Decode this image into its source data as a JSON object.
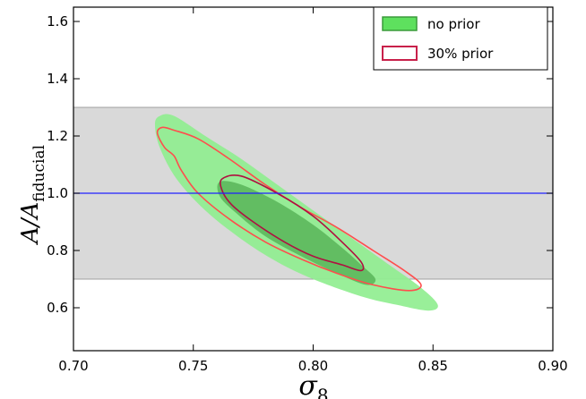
{
  "chart_data": {
    "type": "contour",
    "xlabel": "σ8",
    "ylabel": "A/Afiducial",
    "xlim": [
      0.7,
      0.9
    ],
    "ylim": [
      0.45,
      1.65
    ],
    "x_ticks": [
      0.7,
      0.75,
      0.8,
      0.85,
      0.9
    ],
    "y_ticks": [
      0.6,
      0.8,
      1.0,
      1.2,
      1.4,
      1.6
    ],
    "x_tick_labels": [
      "0.70",
      "0.75",
      "0.80",
      "0.85",
      "0.90"
    ],
    "y_tick_labels": [
      "0.6",
      "0.8",
      "1.0",
      "1.2",
      "1.4",
      "1.6"
    ],
    "grid": false,
    "legend_position": "top-right",
    "shaded_band": {
      "y_range": [
        0.7,
        1.3
      ],
      "color": "#d9d9d9"
    },
    "reference_line": {
      "y": 1.0,
      "color": "#2020ff"
    },
    "series": [
      {
        "name": "no prior",
        "style": "filled",
        "color_outer": "#90ee90",
        "color_inner": "#5cb85c",
        "edge_color": "#3a9a3a",
        "contours": [
          {
            "level": "outer",
            "points": [
              [
                0.736,
                1.27
              ],
              [
                0.742,
                1.27
              ],
              [
                0.755,
                1.2
              ],
              [
                0.77,
                1.12
              ],
              [
                0.785,
                1.03
              ],
              [
                0.8,
                0.94
              ],
              [
                0.815,
                0.85
              ],
              [
                0.83,
                0.76
              ],
              [
                0.845,
                0.67
              ],
              [
                0.852,
                0.61
              ],
              [
                0.848,
                0.59
              ],
              [
                0.835,
                0.61
              ],
              [
                0.82,
                0.64
              ],
              [
                0.8,
                0.7
              ],
              [
                0.785,
                0.76
              ],
              [
                0.77,
                0.84
              ],
              [
                0.755,
                0.94
              ],
              [
                0.743,
                1.05
              ],
              [
                0.736,
                1.16
              ],
              [
                0.734,
                1.24
              ]
            ]
          },
          {
            "level": "inner",
            "points": [
              [
                0.761,
                1.04
              ],
              [
                0.77,
                1.03
              ],
              [
                0.785,
                0.97
              ],
              [
                0.8,
                0.89
              ],
              [
                0.812,
                0.81
              ],
              [
                0.82,
                0.75
              ],
              [
                0.826,
                0.7
              ],
              [
                0.822,
                0.68
              ],
              [
                0.81,
                0.72
              ],
              [
                0.795,
                0.78
              ],
              [
                0.78,
                0.85
              ],
              [
                0.768,
                0.93
              ],
              [
                0.761,
                0.99
              ]
            ]
          }
        ]
      },
      {
        "name": "30% prior",
        "style": "line",
        "color_outer": "#ff4d4d",
        "color_inner": "#b01040",
        "contours": [
          {
            "level": "outer",
            "points": [
              [
                0.735,
                1.21
              ],
              [
                0.737,
                1.23
              ],
              [
                0.742,
                1.22
              ],
              [
                0.752,
                1.19
              ],
              [
                0.765,
                1.12
              ],
              [
                0.78,
                1.03
              ],
              [
                0.795,
                0.95
              ],
              [
                0.81,
                0.88
              ],
              [
                0.825,
                0.8
              ],
              [
                0.838,
                0.73
              ],
              [
                0.845,
                0.68
              ],
              [
                0.84,
                0.66
              ],
              [
                0.825,
                0.68
              ],
              [
                0.81,
                0.72
              ],
              [
                0.795,
                0.77
              ],
              [
                0.78,
                0.83
              ],
              [
                0.765,
                0.91
              ],
              [
                0.752,
                1.0
              ],
              [
                0.745,
                1.08
              ],
              [
                0.742,
                1.13
              ],
              [
                0.738,
                1.16
              ]
            ]
          },
          {
            "level": "inner",
            "points": [
              [
                0.762,
                1.05
              ],
              [
                0.77,
                1.06
              ],
              [
                0.785,
                1.0
              ],
              [
                0.8,
                0.92
              ],
              [
                0.812,
                0.83
              ],
              [
                0.82,
                0.76
              ],
              [
                0.82,
                0.73
              ],
              [
                0.812,
                0.75
              ],
              [
                0.8,
                0.78
              ],
              [
                0.788,
                0.83
              ],
              [
                0.775,
                0.9
              ],
              [
                0.766,
                0.96
              ],
              [
                0.762,
                1.01
              ]
            ]
          }
        ]
      }
    ]
  }
}
